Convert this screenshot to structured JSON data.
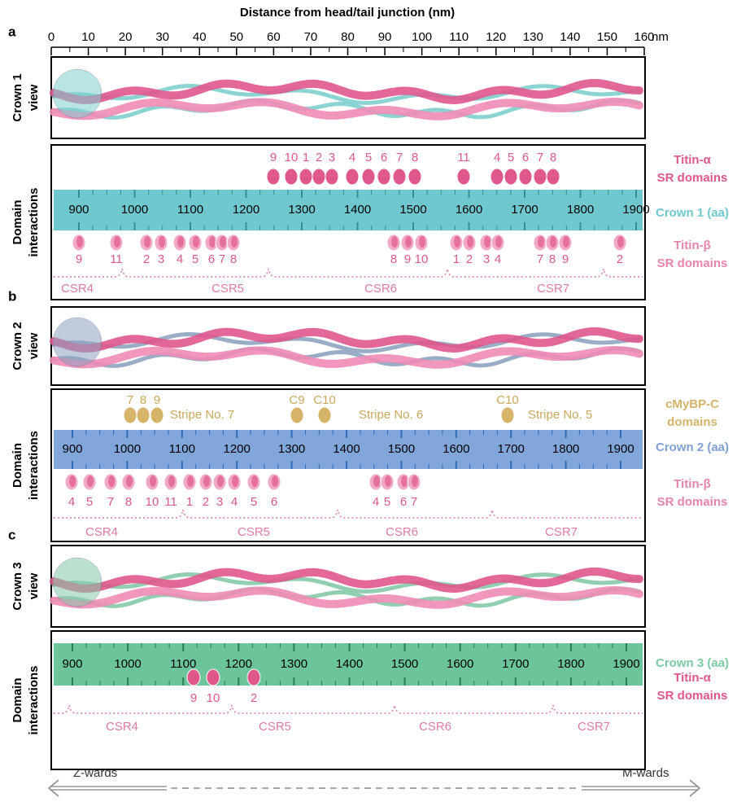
{
  "axis": {
    "title": "Distance from head/tail junction (nm)",
    "ticks": [
      0,
      10,
      20,
      30,
      40,
      50,
      60,
      70,
      80,
      90,
      100,
      110,
      120,
      130,
      140,
      150,
      160
    ],
    "unit": "nm"
  },
  "panels": [
    {
      "label": "a",
      "view_label": [
        "Crown 1",
        "view"
      ],
      "interactions_label": [
        "Domain",
        "interactions"
      ],
      "scale": {
        "name": "Crown 1 (aa)",
        "ticks": [
          900,
          1000,
          1100,
          1200,
          1300,
          1400,
          1500,
          1600,
          1700,
          1800,
          1900
        ]
      },
      "above": {
        "name": [
          "Titin-α",
          "SR domains"
        ],
        "labels": [
          "9",
          "10",
          "1",
          "2",
          "3",
          "4",
          "5",
          "6",
          "7",
          "8",
          "11",
          "4",
          "5",
          "6",
          "7",
          "8"
        ]
      },
      "below": {
        "name": [
          "Titin-β",
          "SR domains"
        ],
        "labels": [
          "9",
          "11",
          "2",
          "3",
          "4",
          "5",
          "6",
          "7",
          "8",
          "8",
          "9",
          "10",
          "1",
          "2",
          "3",
          "4",
          "7",
          "8",
          "9",
          "2"
        ]
      },
      "csr": [
        "CSR4",
        "CSR5",
        "CSR6",
        "CSR7"
      ]
    },
    {
      "label": "b",
      "view_label": [
        "Crown 2",
        "view"
      ],
      "interactions_label": [
        "Domain",
        "interactions"
      ],
      "scale": {
        "name": "Crown 2 (aa)",
        "ticks": [
          900,
          1000,
          1100,
          1200,
          1300,
          1400,
          1500,
          1600,
          1700,
          1800,
          1900
        ]
      },
      "above": {
        "name": [
          "cMyBP-C",
          "domains"
        ],
        "labels": [
          "7",
          "8",
          "9",
          "Stripe No. 7",
          "C9",
          "C10",
          "Stripe No. 6",
          "C10",
          "Stripe No. 5"
        ]
      },
      "below": {
        "name": [
          "Titin-β",
          "SR domains"
        ],
        "labels": [
          "4",
          "5",
          "7",
          "8",
          "10",
          "11",
          "1",
          "2",
          "3",
          "4",
          "5",
          "6",
          "4",
          "5",
          "6",
          "7"
        ]
      },
      "csr": [
        "CSR4",
        "CSR5",
        "CSR6",
        "CSR7"
      ]
    },
    {
      "label": "c",
      "view_label": [
        "Crown 3",
        "view"
      ],
      "interactions_label": [
        "Domain",
        "interactions"
      ],
      "scale": {
        "name": "Crown 3 (aa)",
        "ticks": [
          900,
          1000,
          1100,
          1200,
          1300,
          1400,
          1500,
          1600,
          1700,
          1800,
          1900
        ]
      },
      "below": {
        "name": [
          "Titin-α",
          "SR domains"
        ],
        "labels": [
          "9",
          "10",
          "2"
        ]
      },
      "csr": [
        "CSR4",
        "CSR5",
        "CSR6",
        "CSR7"
      ]
    }
  ],
  "directions": [
    "Z-wards",
    "M-wards"
  ]
}
